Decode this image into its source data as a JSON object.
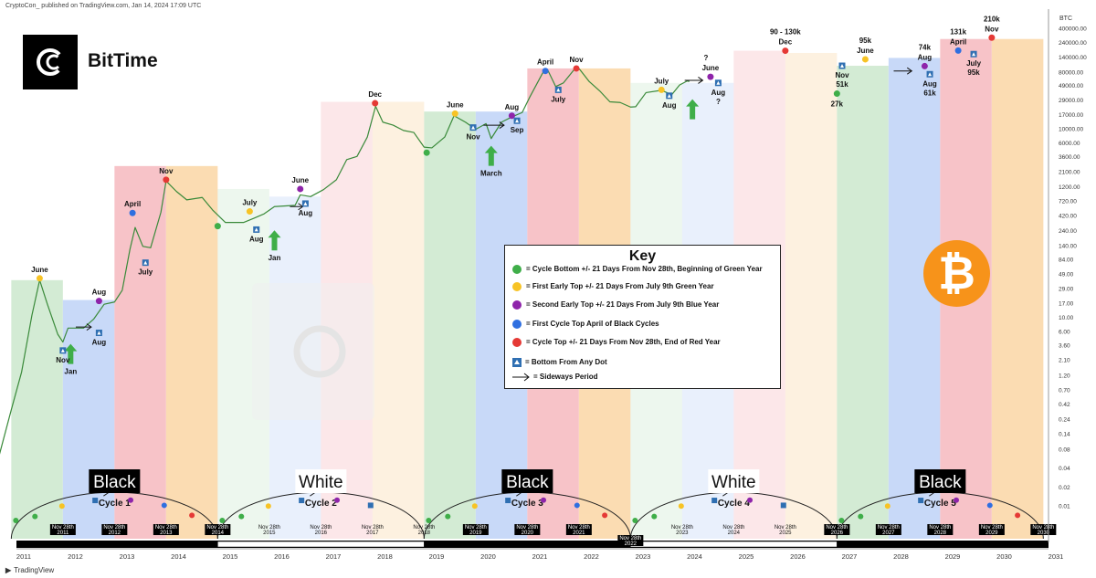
{
  "header": {
    "text": "CryptoCon_ published on TradingView.com, Jan 14, 2024 17:09 UTC"
  },
  "footer": {
    "text": "TradingView"
  },
  "brand": {
    "name": "BitTime"
  },
  "key": {
    "title": "Key",
    "items": [
      {
        "icon": "green-dot",
        "color": "#3fae49",
        "text": "= Cycle Bottom +/- 21 Days From Nov 28th, Beginning of Green Year"
      },
      {
        "icon": "yellow-dot",
        "color": "#f7c325",
        "text": "= First Early Top +/- 21 Days From July 9th Green Year"
      },
      {
        "icon": "purple-dot",
        "color": "#8e24aa",
        "text": "= Second Early Top +/- 21 Days From July 9th Blue Year"
      },
      {
        "icon": "blue-dot",
        "color": "#2f6fe0",
        "text": "= First Cycle Top April of Black Cycles"
      },
      {
        "icon": "red-dot",
        "color": "#e53935",
        "text": "= Cycle Top +/- 21 Days From Nov 28th, End of Red Year"
      },
      {
        "icon": "blue-triangle-icon",
        "color": "#2f6fb2",
        "text": "= Bottom From Any Dot"
      },
      {
        "icon": "arrow-right-icon",
        "color": "#111111",
        "text": "= Sideways Period"
      }
    ]
  },
  "chart_data": {
    "type": "line",
    "title": "",
    "y_axis_unit": "BTC",
    "y_scale": "log",
    "x_ticks": [
      "2011",
      "2012",
      "2013",
      "2014",
      "2015",
      "2016",
      "2017",
      "2018",
      "2019",
      "2020",
      "2021",
      "2022",
      "2023",
      "2024",
      "2025",
      "2026",
      "2027",
      "2028",
      "2029",
      "2030",
      "2031"
    ],
    "y_ticks": [
      "400000.00",
      "240000.00",
      "140000.00",
      "80000.00",
      "49000.00",
      "29000.00",
      "17000.00",
      "10000.00",
      "6000.00",
      "3600.00",
      "2100.00",
      "1200.00",
      "720.00",
      "420.00",
      "240.00",
      "140.00",
      "84.00",
      "49.00",
      "29.00",
      "17.00",
      "10.00",
      "6.00",
      "3.60",
      "2.10",
      "1.20",
      "0.70",
      "0.42",
      "0.24",
      "0.14",
      "0.08",
      "0.04",
      "0.02",
      "0.01"
    ],
    "series": [
      {
        "name": "",
        "points": [
          [
            "2010.45",
            0.01
          ],
          [
            "2010.7",
            0.06
          ],
          [
            "2010.9",
            0.25
          ],
          [
            "2011.1",
            1.0
          ],
          [
            "2011.3",
            8
          ],
          [
            "2011.45",
            29
          ],
          [
            "2011.6",
            12
          ],
          [
            "2011.8",
            4
          ],
          [
            "2011.9",
            3
          ],
          [
            "2012.0",
            5
          ],
          [
            "2012.3",
            5
          ],
          [
            "2012.5",
            7
          ],
          [
            "2012.7",
            12
          ],
          [
            "2012.9",
            13
          ],
          [
            "2013.05",
            20
          ],
          [
            "2013.2",
            90
          ],
          [
            "2013.3",
            200
          ],
          [
            "2013.45",
            100
          ],
          [
            "2013.6",
            95
          ],
          [
            "2013.8",
            350
          ],
          [
            "2013.9",
            1100
          ],
          [
            "2014.1",
            750
          ],
          [
            "2014.3",
            550
          ],
          [
            "2014.6",
            600
          ],
          [
            "2014.8",
            380
          ],
          [
            "2015.05",
            240
          ],
          [
            "2015.4",
            240
          ],
          [
            "2015.6",
            280
          ],
          [
            "2015.8",
            330
          ],
          [
            "2016.0",
            430
          ],
          [
            "2016.4",
            450
          ],
          [
            "2016.5",
            660
          ],
          [
            "2016.7",
            620
          ],
          [
            "2016.95",
            800
          ],
          [
            "2017.2",
            1150
          ],
          [
            "2017.4",
            2400
          ],
          [
            "2017.6",
            2700
          ],
          [
            "2017.8",
            5500
          ],
          [
            "2017.96",
            17000
          ],
          [
            "2018.1",
            9500
          ],
          [
            "2018.3",
            8500
          ],
          [
            "2018.5",
            7000
          ],
          [
            "2018.7",
            6500
          ],
          [
            "2018.9",
            3800
          ],
          [
            "2019.05",
            3700
          ],
          [
            "2019.3",
            5500
          ],
          [
            "2019.48",
            12000
          ],
          [
            "2019.7",
            9500
          ],
          [
            "2019.9",
            7300
          ],
          [
            "2020.1",
            9000
          ],
          [
            "2020.2",
            5200
          ],
          [
            "2020.4",
            9500
          ],
          [
            "2020.6",
            11500
          ],
          [
            "2020.8",
            13500
          ],
          [
            "2020.95",
            24000
          ],
          [
            "2021.2",
            58000
          ],
          [
            "2021.3",
            63000
          ],
          [
            "2021.45",
            35000
          ],
          [
            "2021.6",
            40000
          ],
          [
            "2021.8",
            64000
          ],
          [
            "2021.9",
            68000
          ],
          [
            "2022.1",
            42000
          ],
          [
            "2022.3",
            30000
          ],
          [
            "2022.5",
            20000
          ],
          [
            "2022.7",
            19500
          ],
          [
            "2022.9",
            16500
          ],
          [
            "2023.0",
            16700
          ],
          [
            "2023.2",
            28000
          ],
          [
            "2023.5",
            30500
          ],
          [
            "2023.7",
            26000
          ],
          [
            "2023.85",
            37000
          ],
          [
            "2024.0",
            43000
          ],
          [
            "2024.04",
            42000
          ]
        ]
      }
    ],
    "cycles": [
      {
        "label": "Black",
        "sub": "Cycle 1"
      },
      {
        "label": "White",
        "sub": "Cycle 2"
      },
      {
        "label": "Black",
        "sub": "Cycle 3"
      },
      {
        "label": "White",
        "sub": "Cycle 4"
      },
      {
        "label": "Black",
        "sub": "Cycle 5"
      }
    ],
    "year_colors": {
      "green": "#d3ebd4",
      "blue": "#c8d9f8",
      "red": "#f7c3c8",
      "orange": "#fbdcb2"
    },
    "bands": [
      {
        "from": "2010.9",
        "to": "2011.9",
        "color": "green",
        "top": 29
      },
      {
        "from": "2011.9",
        "to": "2012.9",
        "color": "blue",
        "top": 14
      },
      {
        "from": "2012.9",
        "to": "2013.9",
        "color": "red",
        "top": 1900
      },
      {
        "from": "2013.9",
        "to": "2014.9",
        "color": "orange",
        "top": 1900
      },
      {
        "from": "2014.9",
        "to": "2015.9",
        "color": "green",
        "faint": true,
        "top": 820
      },
      {
        "from": "2015.9",
        "to": "2016.9",
        "color": "blue",
        "faint": true,
        "top": 620
      },
      {
        "from": "2016.9",
        "to": "2017.9",
        "color": "red",
        "faint": true,
        "top": 20000
      },
      {
        "from": "2017.9",
        "to": "2018.9",
        "color": "orange",
        "faint": true,
        "top": 20000
      },
      {
        "from": "2018.9",
        "to": "2019.9",
        "color": "green",
        "top": 14000
      },
      {
        "from": "2019.9",
        "to": "2020.9",
        "color": "blue",
        "top": 14000
      },
      {
        "from": "2020.9",
        "to": "2021.9",
        "color": "red",
        "top": 68000
      },
      {
        "from": "2021.9",
        "to": "2022.9",
        "color": "orange",
        "top": 68000
      },
      {
        "from": "2022.9",
        "to": "2023.9",
        "color": "green",
        "faint": true,
        "top": 40000
      },
      {
        "from": "2023.9",
        "to": "2024.9",
        "color": "blue",
        "faint": true,
        "top": 40000
      },
      {
        "from": "2024.9",
        "to": "2025.9",
        "color": "red",
        "faint": true,
        "top": 130000
      },
      {
        "from": "2025.9",
        "to": "2026.9",
        "color": "orange",
        "faint": true,
        "top": 120000
      },
      {
        "from": "2026.9",
        "to": "2027.9",
        "color": "green",
        "top": 75000
      },
      {
        "from": "2027.9",
        "to": "2028.9",
        "color": "blue",
        "top": 100000
      },
      {
        "from": "2028.9",
        "to": "2029.9",
        "color": "red",
        "top": 200000
      },
      {
        "from": "2029.9",
        "to": "2030.9",
        "color": "orange",
        "top": 200000
      }
    ],
    "markers": [
      {
        "type": "yellow",
        "x": "2011.45",
        "y": 31,
        "label": "June",
        "pos": "above"
      },
      {
        "type": "purple",
        "x": "2012.6",
        "y": 13.5,
        "label": "Aug",
        "pos": "above"
      },
      {
        "type": "blue",
        "x": "2013.25",
        "y": 340,
        "label": "April",
        "pos": "above"
      },
      {
        "type": "red",
        "x": "2013.9",
        "y": 1150,
        "label": "Nov",
        "pos": "above"
      },
      {
        "type": "green",
        "x": "2014.9",
        "y": 210,
        "label": "",
        "pos": "none"
      },
      {
        "type": "yellow",
        "x": "2015.52",
        "y": 360,
        "label": "July",
        "pos": "above"
      },
      {
        "type": "purple",
        "x": "2016.5",
        "y": 820,
        "label": "June",
        "pos": "above"
      },
      {
        "type": "red",
        "x": "2017.95",
        "y": 19000,
        "label": "Dec",
        "pos": "above"
      },
      {
        "type": "green",
        "x": "2018.95",
        "y": 3100,
        "label": "",
        "pos": "none"
      },
      {
        "type": "yellow",
        "x": "2019.5",
        "y": 13000,
        "label": "June",
        "pos": "above"
      },
      {
        "type": "purple",
        "x": "2020.6",
        "y": 12000,
        "label": "Aug",
        "pos": "above"
      },
      {
        "type": "blue",
        "x": "2021.25",
        "y": 62000,
        "label": "April",
        "pos": "above"
      },
      {
        "type": "red",
        "x": "2021.85",
        "y": 68000,
        "label": "Nov",
        "pos": "above"
      },
      {
        "type": "yellow",
        "x": "2023.5",
        "y": 31000,
        "label": "July",
        "pos": "above"
      },
      {
        "type": "purple",
        "x": "2024.45",
        "y": 50000,
        "label": "June",
        "pos": "above",
        "prefix": "?"
      },
      {
        "type": "red",
        "x": "2025.9",
        "y": 130000,
        "label": "90 - 130k",
        "sub": "Dec",
        "pos": "above"
      },
      {
        "type": "green",
        "x": "2026.9",
        "y": 27000,
        "label": "27k",
        "pos": "below"
      },
      {
        "type": "yellow",
        "x": "2027.45",
        "y": 95000,
        "label": "95k",
        "sub": "June",
        "pos": "above"
      },
      {
        "type": "purple",
        "x": "2028.6",
        "y": 74000,
        "label": "74k",
        "sub": "Aug",
        "pos": "above"
      },
      {
        "type": "blue",
        "x": "2029.25",
        "y": 131000,
        "label": "131k",
        "sub": "April",
        "pos": "above"
      },
      {
        "type": "red",
        "x": "2029.9",
        "y": 210000,
        "label": "210k",
        "sub": "Nov",
        "pos": "above"
      }
    ],
    "bottoms": [
      {
        "x": "2011.9",
        "y": 2.2,
        "label": "Nov",
        "pos": "below"
      },
      {
        "x": "2012.6",
        "y": 4.2,
        "label": "Aug",
        "pos": "below"
      },
      {
        "x": "2013.5",
        "y": 55,
        "label": "July",
        "pos": "below"
      },
      {
        "x": "2015.65",
        "y": 185,
        "label": "Aug",
        "pos": "below"
      },
      {
        "x": "2016.6",
        "y": 480,
        "label": "Aug",
        "pos": "below"
      },
      {
        "x": "2019.85",
        "y": 7800,
        "label": "Nov",
        "pos": "below"
      },
      {
        "x": "2020.7",
        "y": 10000,
        "label": "Sep",
        "pos": "below"
      },
      {
        "x": "2021.5",
        "y": 31000,
        "label": "July",
        "pos": "below"
      },
      {
        "x": "2023.65",
        "y": 25000,
        "label": "Aug",
        "pos": "below"
      },
      {
        "x": "2024.6",
        "y": 40000,
        "label": "Aug",
        "sub": "?",
        "pos": "below"
      },
      {
        "x": "2027.0",
        "y": 75000,
        "label": "Nov",
        "sub": "51k",
        "pos": "below"
      },
      {
        "x": "2028.7",
        "y": 55000,
        "label": "Aug",
        "sub": "61k",
        "pos": "below"
      },
      {
        "x": "2029.55",
        "y": 115000,
        "label": "July",
        "sub": "95k",
        "pos": "below"
      }
    ],
    "green_arrows": [
      {
        "x": "2012.05",
        "y": 2.8,
        "label": "Jan"
      },
      {
        "x": "2016.0",
        "y": 180,
        "label": "Jan"
      },
      {
        "x": "2020.2",
        "y": 4000,
        "label": "March"
      },
      {
        "x": "2024.1",
        "y": 22000,
        "label": ""
      }
    ],
    "sideways": [
      {
        "from": "2012.15",
        "to": "2012.45",
        "y": 5.2
      },
      {
        "from": "2016.3",
        "to": "2016.55",
        "y": 430
      },
      {
        "from": "2020.05",
        "to": "2020.45",
        "y": 8500
      },
      {
        "from": "2023.95",
        "to": "2024.3",
        "y": 44000
      },
      {
        "from": "2028.0",
        "to": "2028.35",
        "y": 62000
      }
    ],
    "arc_dots": [
      {
        "cycle": 0,
        "markers": [
          "green",
          "yellow",
          "blue-tri",
          "purple",
          "blue",
          "red"
        ]
      },
      {
        "cycle": 1,
        "markers": [
          "green",
          "yellow",
          "blue-tri",
          "purple",
          "blue-tri"
        ]
      },
      {
        "cycle": 2,
        "markers": [
          "green",
          "yellow",
          "blue-tri",
          "purple",
          "blue",
          "red"
        ]
      },
      {
        "cycle": 3,
        "markers": [
          "green",
          "yellow",
          "blue-tri",
          "purple",
          "blue-tri"
        ]
      },
      {
        "cycle": 4,
        "markers": [
          "green",
          "yellow",
          "blue-tri",
          "purple",
          "blue",
          "red"
        ]
      }
    ],
    "nov_labels": [
      {
        "line1": "Nov 28th",
        "line2": "2011",
        "style": "dark"
      },
      {
        "line1": "Nov 28th",
        "line2": "2012",
        "style": "dark"
      },
      {
        "line1": "Nov 28th",
        "line2": "2013",
        "style": "dark"
      },
      {
        "line1": "Nov 28th",
        "line2": "2014",
        "style": "dark"
      },
      {
        "line1": "Nov 28th",
        "line2": "2015",
        "style": "light"
      },
      {
        "line1": "Nov 28th",
        "line2": "2016",
        "style": "light"
      },
      {
        "line1": "Nov 28th",
        "line2": "2017",
        "style": "light"
      },
      {
        "line1": "Nov 28th",
        "line2": "2018",
        "style": "light"
      },
      {
        "line1": "Nov 28th",
        "line2": "2019",
        "style": "dark"
      },
      {
        "line1": "Nov 28th",
        "line2": "2020",
        "style": "dark"
      },
      {
        "line1": "Nov 28th",
        "line2": "2021",
        "style": "dark"
      },
      {
        "line1": "Nov 28th",
        "line2": "2022",
        "style": "dark"
      },
      {
        "line1": "Nov 28th",
        "line2": "2023",
        "style": "light"
      },
      {
        "line1": "Nov 28th",
        "line2": "2024",
        "style": "light"
      },
      {
        "line1": "Nov 28th",
        "line2": "2025",
        "style": "light"
      },
      {
        "line1": "Nov 28th",
        "line2": "2026",
        "style": "dark"
      },
      {
        "line1": "Nov 28th",
        "line2": "2027",
        "style": "dark"
      },
      {
        "line1": "Nov 28th",
        "line2": "2028",
        "style": "dark"
      },
      {
        "line1": "Nov 28th",
        "line2": "2029",
        "style": "dark"
      },
      {
        "line1": "Nov 28th",
        "line2": "2030",
        "style": "dark"
      }
    ],
    "colors": {
      "price_line": "#3a8a3a",
      "green": "#3fae49",
      "yellow": "#f7c325",
      "purple": "#8e24aa",
      "blue": "#2f6fe0",
      "red": "#e53935",
      "triangle": "#2f6fb2",
      "arrow_green": "#3fae49"
    }
  }
}
